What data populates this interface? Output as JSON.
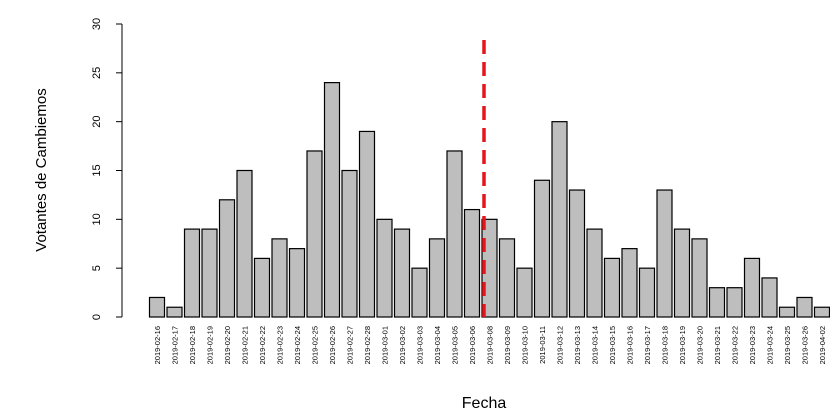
{
  "chart_data": {
    "type": "bar",
    "categories": [
      "2019-02-16",
      "2019-02-17",
      "2019-02-18",
      "2019-02-19",
      "2019-02-20",
      "2019-02-21",
      "2019-02-22",
      "2019-02-23",
      "2019-02-24",
      "2019-02-25",
      "2019-02-26",
      "2019-02-27",
      "2019-02-28",
      "2019-03-01",
      "2019-03-02",
      "2019-03-03",
      "2019-03-04",
      "2019-03-05",
      "2019-03-06",
      "2019-03-08",
      "2019-03-09",
      "2019-03-10",
      "2019-03-11",
      "2019-03-12",
      "2019-03-13",
      "2019-03-14",
      "2019-03-15",
      "2019-03-16",
      "2019-03-17",
      "2019-03-18",
      "2019-03-19",
      "2019-03-20",
      "2019-03-21",
      "2019-03-22",
      "2019-03-23",
      "2019-03-24",
      "2019-03-25",
      "2019-03-26",
      "2019-04-02"
    ],
    "values": [
      2,
      1,
      9,
      9,
      12,
      15,
      6,
      8,
      7,
      17,
      24,
      15,
      19,
      10,
      9,
      5,
      8,
      17,
      11,
      10,
      8,
      5,
      14,
      20,
      13,
      9,
      6,
      7,
      5,
      13,
      9,
      8,
      3,
      3,
      6,
      4,
      1,
      2,
      1
    ],
    "color": "#bebebe",
    "x_label": "Fecha",
    "y_label": "Votantes de Cambiemos",
    "ylim": [
      0,
      30
    ],
    "yticks": [
      0,
      5,
      10,
      15,
      20,
      25,
      30
    ],
    "grid": false
  }
}
